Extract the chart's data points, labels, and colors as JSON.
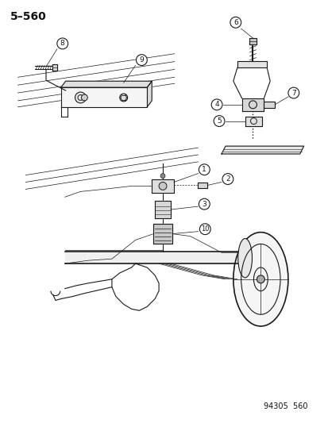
{
  "title": "5–560",
  "bg_color": "#ffffff",
  "line_color": "#1a1a1a",
  "label_color": "#111111",
  "footer": "94305  560",
  "figsize": [
    4.14,
    5.33
  ],
  "dpi": 100
}
